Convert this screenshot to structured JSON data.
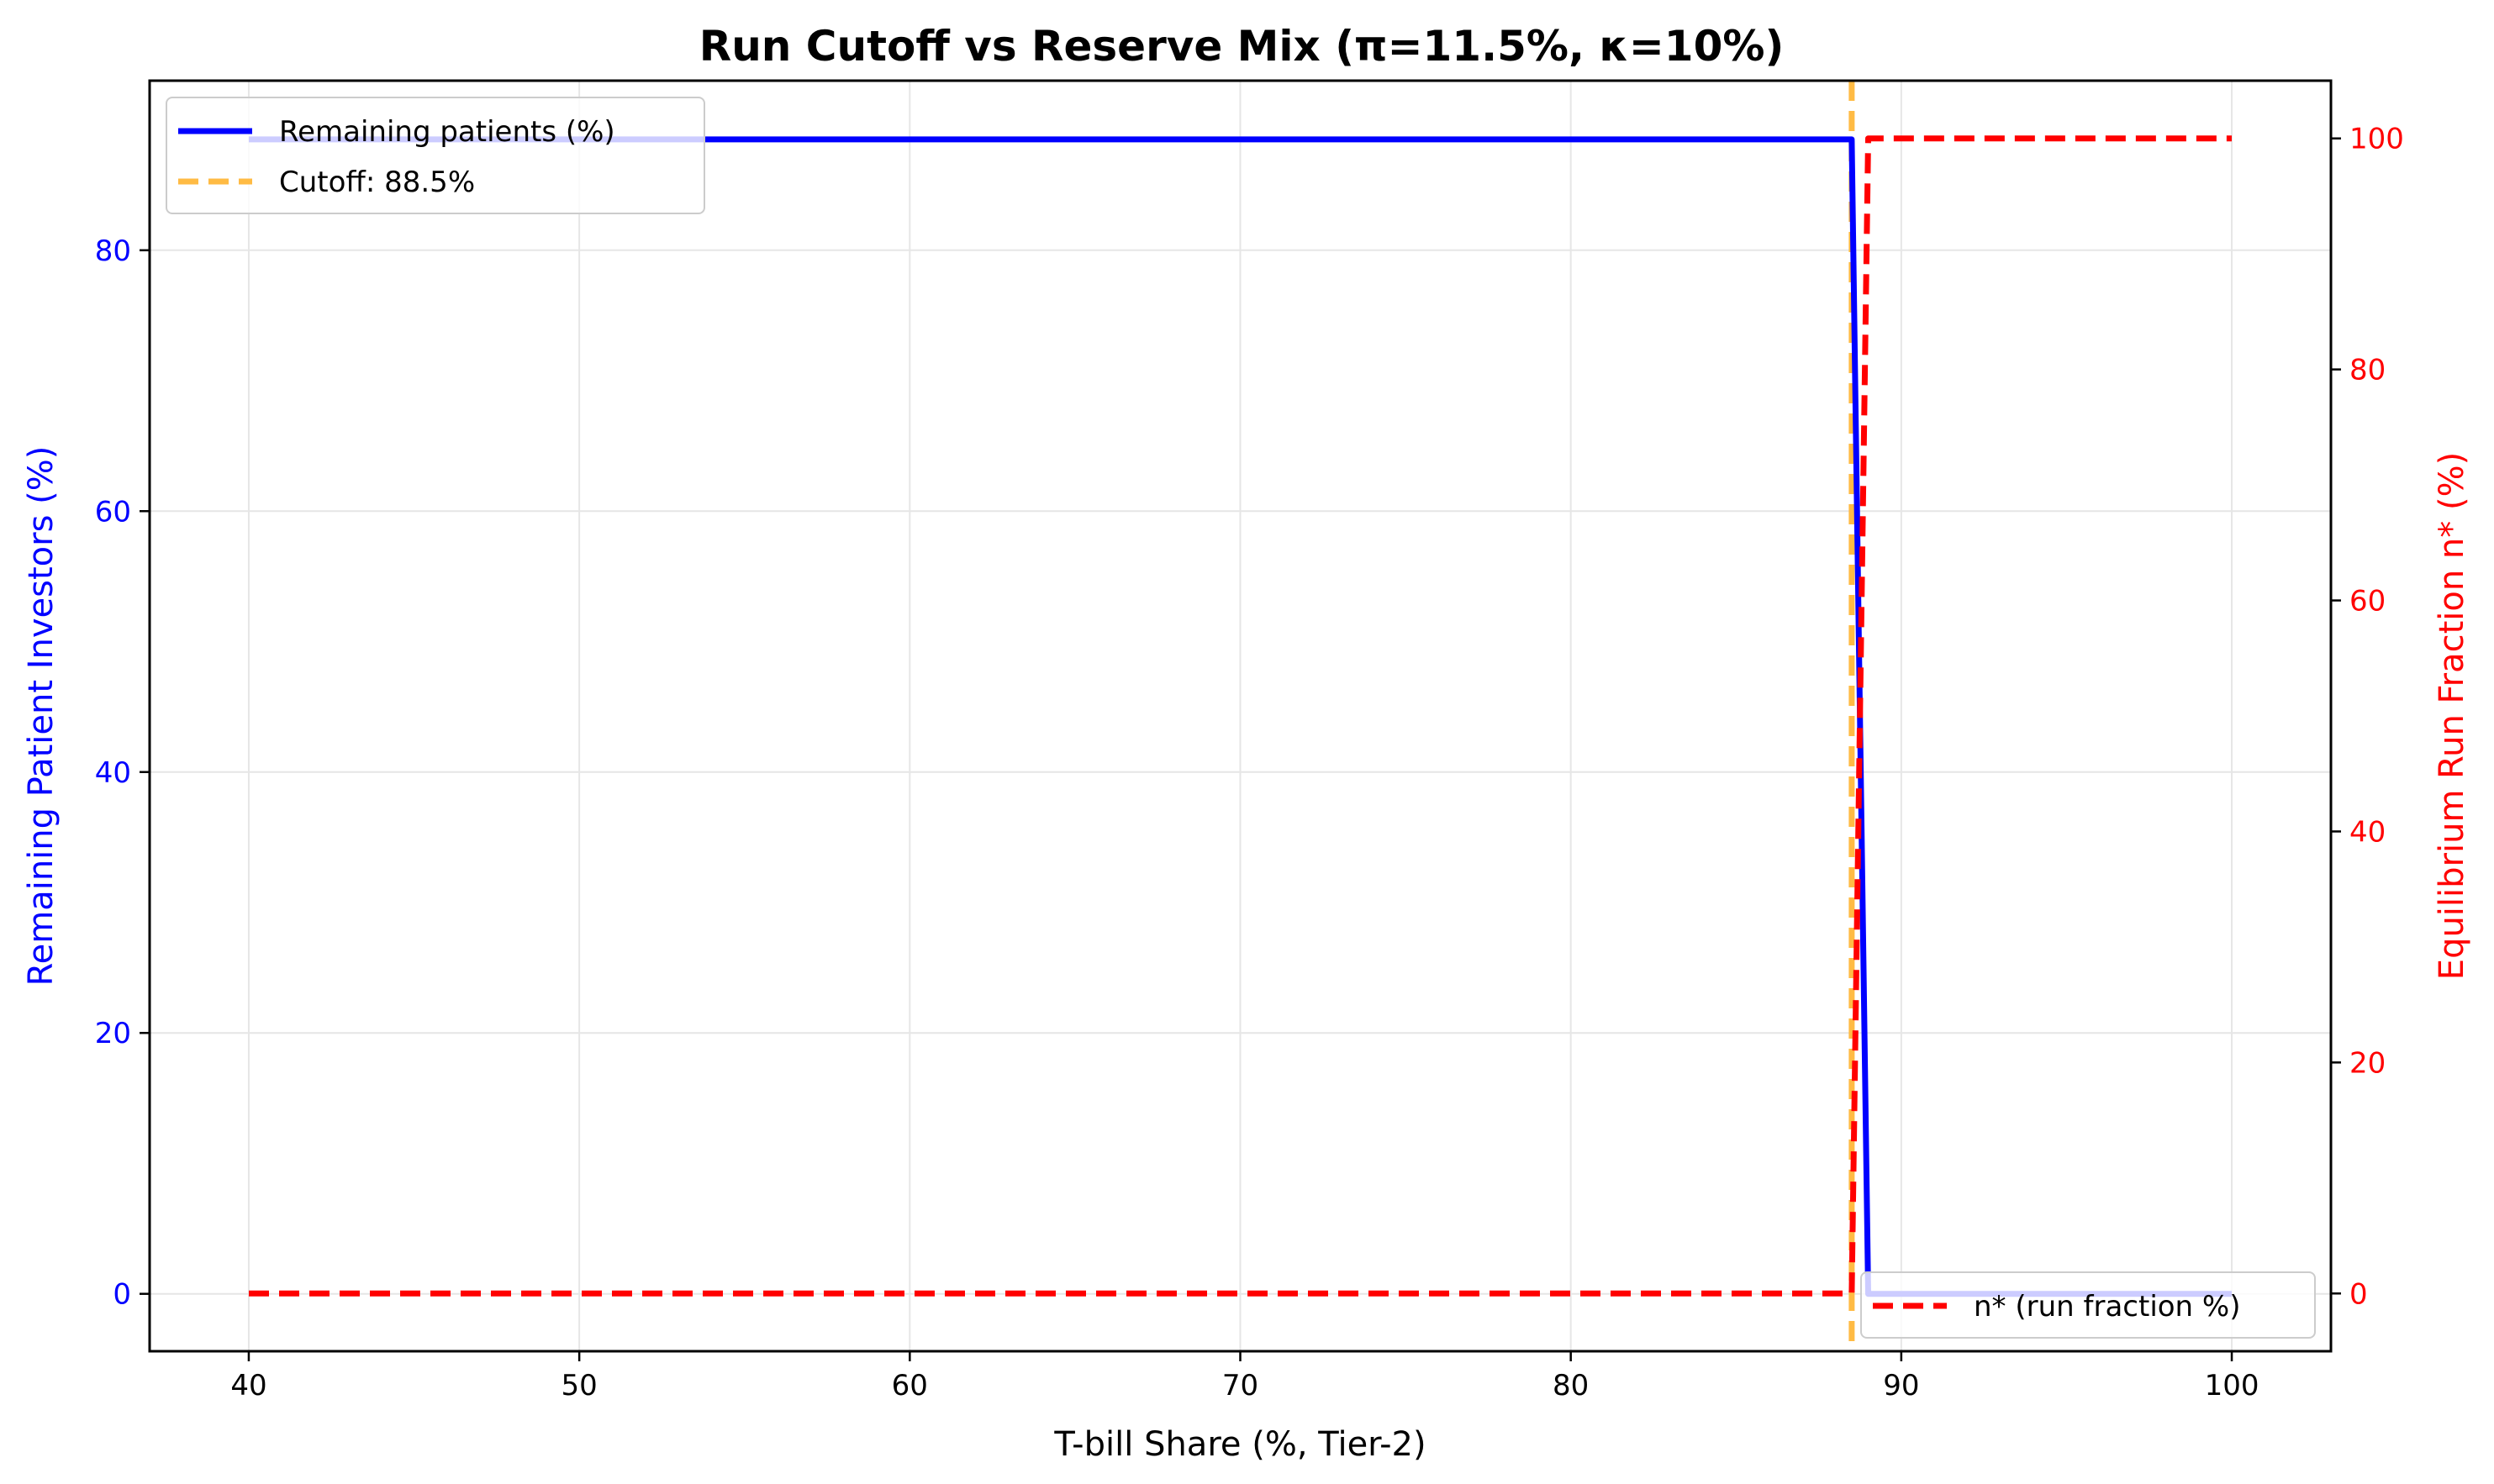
{
  "chart_data": {
    "type": "line",
    "title": "Run Cutoff vs Reserve Mix (π=11.5%, κ=10%)",
    "xlabel": "T-bill Share (%, Tier-2)",
    "ylabel_left": "Remaining Patient Investors (%)",
    "ylabel_right": "Equilibrium Run Fraction n* (%)",
    "xlim": [
      37,
      103
    ],
    "ylim_left": [
      -4.4,
      93
    ],
    "ylim_right": [
      -5,
      105
    ],
    "x_ticks": [
      40,
      50,
      60,
      70,
      80,
      90,
      100
    ],
    "y_ticks_left": [
      0,
      20,
      40,
      60,
      80
    ],
    "y_ticks_right": [
      0,
      20,
      40,
      60,
      80,
      100
    ],
    "grid": true,
    "series": [
      {
        "name": "Remaining patients (%)",
        "axis": "left",
        "color": "#0000ff",
        "style": "solid",
        "x": [
          40,
          88.5,
          89,
          100
        ],
        "y": [
          88.5,
          88.5,
          0,
          0
        ]
      },
      {
        "name": "n* (run fraction %)",
        "axis": "right",
        "color": "#ff0000",
        "style": "dashed",
        "x": [
          40,
          88.5,
          89,
          100
        ],
        "y": [
          0,
          0,
          100,
          100
        ]
      }
    ],
    "cutoff": {
      "x": 88.5,
      "label": "Cutoff: 88.5%",
      "color": "#ffbb44",
      "style": "dashed"
    },
    "legends": [
      {
        "placement": "upper-left",
        "entries": [
          "Remaining patients (%)",
          "Cutoff: 88.5%"
        ]
      },
      {
        "placement": "lower-right",
        "entries": [
          "n* (run fraction %)"
        ]
      }
    ],
    "colors": {
      "left_axis": "#0000ff",
      "right_axis": "#ff0000",
      "grid": "#e6e6e6"
    }
  }
}
